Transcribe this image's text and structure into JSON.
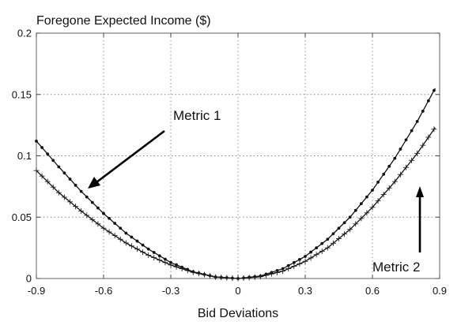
{
  "chart_data": {
    "type": "line",
    "title": "Foregone Expected Income ($)",
    "xlabel": "Bid Deviations",
    "ylabel": "",
    "xlim": [
      -0.9,
      0.9
    ],
    "ylim": [
      0,
      0.2
    ],
    "x_ticks": [
      -0.9,
      -0.6,
      -0.3,
      0,
      0.3,
      0.6,
      0.9
    ],
    "x_tick_labels": [
      "-0.9",
      "-0.6",
      "-0.3",
      "0",
      "0.3",
      "0.6",
      "0.9"
    ],
    "y_ticks": [
      0,
      0.05,
      0.1,
      0.15,
      0.2
    ],
    "y_tick_labels": [
      "0",
      "0.05",
      "0.1",
      "0.15",
      "0.2"
    ],
    "grid": true,
    "series": [
      {
        "name": "Metric 1",
        "marker": "dot",
        "x": [
          -0.9,
          -0.8,
          -0.7,
          -0.6,
          -0.5,
          -0.4,
          -0.3,
          -0.2,
          -0.1,
          0,
          0.1,
          0.2,
          0.3,
          0.4,
          0.5,
          0.6,
          0.7,
          0.8,
          0.88
        ],
        "y": [
          0.112,
          0.091,
          0.071,
          0.053,
          0.037,
          0.024,
          0.013,
          0.0055,
          0.0013,
          0,
          0.002,
          0.008,
          0.018,
          0.032,
          0.05,
          0.072,
          0.098,
          0.128,
          0.155
        ]
      },
      {
        "name": "Metric 2",
        "marker": "plus",
        "x": [
          -0.9,
          -0.8,
          -0.7,
          -0.6,
          -0.5,
          -0.4,
          -0.3,
          -0.2,
          -0.1,
          0,
          0.1,
          0.2,
          0.3,
          0.4,
          0.5,
          0.6,
          0.7,
          0.8,
          0.88
        ],
        "y": [
          0.088,
          0.07,
          0.055,
          0.041,
          0.029,
          0.019,
          0.011,
          0.005,
          0.0012,
          0,
          0.0015,
          0.006,
          0.014,
          0.025,
          0.04,
          0.058,
          0.079,
          0.102,
          0.123
        ]
      }
    ],
    "annotations": [
      {
        "text": "Metric 1",
        "target_series": "Metric 1"
      },
      {
        "text": "Metric 2",
        "target_series": "Metric 2"
      }
    ]
  }
}
